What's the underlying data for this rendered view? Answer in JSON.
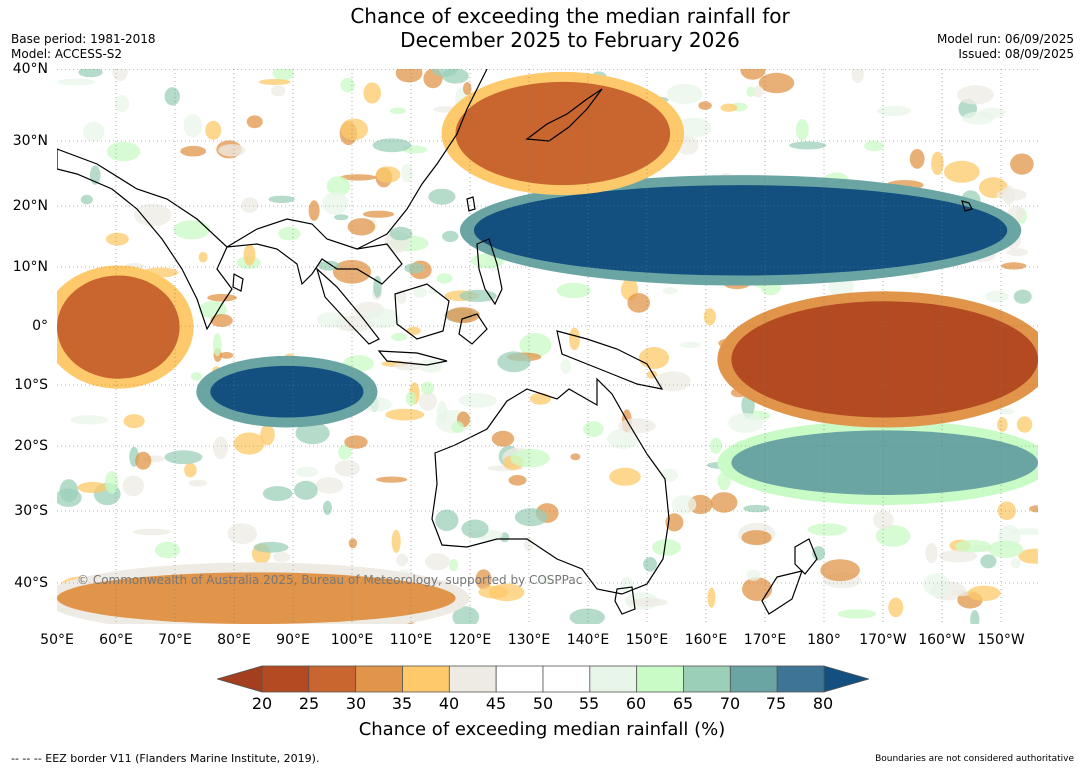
{
  "title_line1": "Chance of exceeding the median rainfall for",
  "title_line2": "December 2025 to February 2026",
  "base_period": "Base period: 1981-2018",
  "model": "Model: ACCESS-S2",
  "model_run": "Model run: 06/09/2025",
  "issued": "Issued: 08/09/2025",
  "lat_labels": [
    "40°N",
    "30°N",
    "20°N",
    "10°N",
    "0°",
    "10°S",
    "20°S",
    "30°S",
    "40°S"
  ],
  "lon_labels": [
    "50°E",
    "60°E",
    "70°E",
    "80°E",
    "90°E",
    "100°E",
    "110°E",
    "120°E",
    "130°E",
    "140°E",
    "150°E",
    "160°E",
    "170°E",
    "180°",
    "170°W",
    "160°W",
    "150°W"
  ],
  "watermark": "© Commonwealth of Australia 2025, Bureau of Meteorology, supported by COSPPac",
  "colorbar": {
    "ticks": [
      "20",
      "25",
      "30",
      "35",
      "40",
      "45",
      "50",
      "55",
      "60",
      "65",
      "70",
      "75",
      "80"
    ],
    "colors": [
      "#a33e1e",
      "#b34a22",
      "#c9662f",
      "#e0954a",
      "#fdc96a",
      "#eeebe4",
      "#ffffff",
      "#ffffff",
      "#e8f5e9",
      "#c9fbc6",
      "#9ccfb8",
      "#6aa5a4",
      "#3e7495",
      "#13507f"
    ],
    "label": "Chance of exceeding median rainfall (%)"
  },
  "footer_left": "--  --  -- EEZ border V11 (Flanders Marine Institute, 2019).",
  "footer_right": "Boundaries are not considered authoritative",
  "map_data": {
    "lon_range": [
      50,
      210
    ],
    "lat_range": [
      -46,
      40
    ],
    "features": [
      {
        "name": "wet-band-north-pacific",
        "level": 80,
        "lon": [
          118,
          205
        ],
        "lat": [
          8,
          22
        ]
      },
      {
        "name": "wet-band-south-pacific",
        "level": 70,
        "lon": [
          160,
          210
        ],
        "lat": [
          -26,
          -16
        ]
      },
      {
        "name": "wet-patch-central-indian-ocean",
        "level": 80,
        "lon": [
          75,
          100
        ],
        "lat": [
          -14,
          -6
        ]
      },
      {
        "name": "dry-band-equatorial-pacific",
        "level": 20,
        "lon": [
          160,
          210
        ],
        "lat": [
          -14,
          4
        ]
      },
      {
        "name": "dry-patch-western-indian-ocean",
        "level": 25,
        "lon": [
          50,
          70
        ],
        "lat": [
          -8,
          8
        ]
      },
      {
        "name": "dry-patch-east-china-sea",
        "level": 25,
        "lon": [
          115,
          150
        ],
        "lat": [
          22,
          38
        ]
      },
      {
        "name": "dry-patch-southern-indian-ocean",
        "level": 30,
        "lon": [
          50,
          115
        ],
        "lat": [
          -46,
          -38
        ]
      }
    ]
  }
}
